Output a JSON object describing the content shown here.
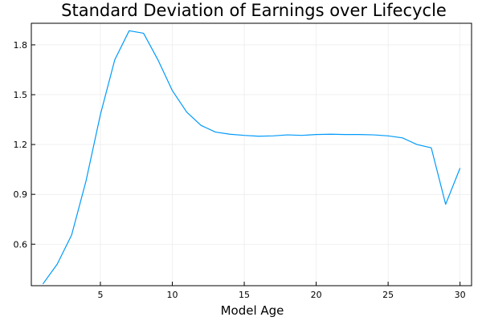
{
  "chart_data": {
    "type": "line",
    "title": "Standard Deviation of Earnings over Lifecycle",
    "xlabel": "Model Age",
    "ylabel": "",
    "xlim": [
      0.2,
      30.8
    ],
    "ylim": [
      0.35,
      1.93
    ],
    "xticks": [
      5,
      10,
      15,
      20,
      25,
      30
    ],
    "yticks": [
      0.6,
      0.9,
      1.2,
      1.5,
      1.8
    ],
    "ytick_labels": [
      "0.6",
      "0.9",
      "1.2",
      "1.5",
      "1.8"
    ],
    "grid": true,
    "legend": "none",
    "series": [
      {
        "color": "#009af9",
        "x": [
          1,
          2,
          3,
          4,
          5,
          6,
          7,
          8,
          9,
          10,
          11,
          12,
          13,
          14,
          15,
          16,
          17,
          18,
          19,
          20,
          21,
          22,
          23,
          24,
          25,
          26,
          27,
          28,
          29,
          30
        ],
        "y": [
          0.36,
          0.48,
          0.655,
          0.98,
          1.38,
          1.71,
          1.885,
          1.87,
          1.71,
          1.525,
          1.395,
          1.315,
          1.275,
          1.262,
          1.255,
          1.25,
          1.252,
          1.258,
          1.255,
          1.26,
          1.262,
          1.26,
          1.26,
          1.258,
          1.252,
          1.24,
          1.2,
          1.18,
          0.84,
          1.058
        ]
      }
    ]
  }
}
